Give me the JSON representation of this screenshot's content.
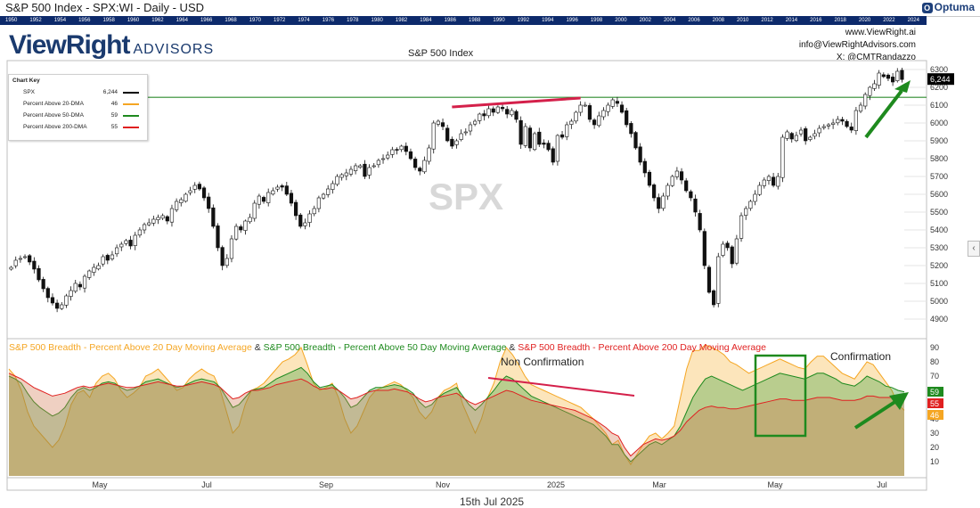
{
  "header": {
    "title": "S&P 500 Index - SPX:WI - Daily - USD",
    "brand": "Optuma",
    "brand_icon": "optuma-icon"
  },
  "year_strip": [
    "1950",
    "1952",
    "1954",
    "1956",
    "1958",
    "1960",
    "1962",
    "1964",
    "1966",
    "1968",
    "1970",
    "1972",
    "1974",
    "1976",
    "1978",
    "1980",
    "1982",
    "1984",
    "1986",
    "1988",
    "1990",
    "1992",
    "1994",
    "1996",
    "1998",
    "2000",
    "2002",
    "2004",
    "2006",
    "2008",
    "2010",
    "2012",
    "2014",
    "2016",
    "2018",
    "2020",
    "2022",
    "2024"
  ],
  "logo": {
    "main": "ViewRight",
    "sub": "ADVISORS"
  },
  "contact": {
    "site": "www.ViewRight.ai",
    "email": "info@ViewRightAdvisors.com",
    "x_handle": "X: @CMTRandazzo"
  },
  "chart_key": {
    "title": "Chart Key",
    "rows": [
      {
        "name": "SPX",
        "value": "6,244",
        "color": "#000000"
      },
      {
        "name": "Percent Above 20-DMA",
        "value": "46",
        "color": "#f5a623"
      },
      {
        "name": "Percent Above 50-DMA",
        "value": "59",
        "color": "#1e8a1e"
      },
      {
        "name": "Percent Above 200-DMA",
        "value": "55",
        "color": "#e02020"
      }
    ]
  },
  "lower_legend": {
    "part1": "S&P 500 Breadth - Percent Above 20 Day Moving Average",
    "amp1": " & ",
    "part2": "S&P 500 Breadth - Percent Above 50 Day Moving Average",
    "amp2": " & ",
    "part3": "S&P 500 Breadth - Percent Above 200 Day Moving Average"
  },
  "footer_date": "15th Jul 2025",
  "chart_data": [
    {
      "type": "candlestick",
      "title": "S&P 500 Index",
      "watermark": "SPX",
      "ylim": [
        4800,
        6340
      ],
      "y_ticks": [
        4900,
        5000,
        5100,
        5200,
        5300,
        5400,
        5500,
        5600,
        5700,
        5800,
        5900,
        6000,
        6100,
        6200,
        6300
      ],
      "last_value_label": "6,244",
      "horizontal_line": {
        "value": 6144,
        "color": "#2e8b2e"
      },
      "x_month_labels": [
        "May",
        "Jul",
        "Sep",
        "Nov",
        "2025",
        "Mar",
        "May",
        "Jul"
      ],
      "closes": [
        5190,
        5230,
        5240,
        5250,
        5220,
        5180,
        5120,
        5070,
        5020,
        4990,
        4960,
        4980,
        5030,
        5060,
        5100,
        5080,
        5140,
        5170,
        5190,
        5200,
        5250,
        5230,
        5260,
        5300,
        5320,
        5340,
        5310,
        5370,
        5400,
        5430,
        5440,
        5460,
        5470,
        5480,
        5450,
        5520,
        5560,
        5570,
        5600,
        5620,
        5650,
        5630,
        5580,
        5520,
        5420,
        5300,
        5200,
        5240,
        5350,
        5420,
        5400,
        5450,
        5470,
        5550,
        5590,
        5560,
        5610,
        5620,
        5640,
        5640,
        5600,
        5550,
        5480,
        5420,
        5440,
        5490,
        5520,
        5580,
        5600,
        5630,
        5660,
        5700,
        5710,
        5720,
        5740,
        5760,
        5760,
        5700,
        5750,
        5760,
        5790,
        5800,
        5820,
        5850,
        5850,
        5870,
        5840,
        5800,
        5750,
        5730,
        5790,
        5860,
        6000,
        6010,
        5980,
        5900,
        5870,
        5900,
        5940,
        5950,
        5990,
        6010,
        6050,
        6040,
        6080,
        6060,
        6090,
        6080,
        6050,
        6070,
        6020,
        5880,
        5980,
        5860,
        5940,
        5880,
        5880,
        5850,
        5780,
        5930,
        5920,
        5990,
        6010,
        6060,
        6100,
        6100,
        6020,
        5990,
        6040,
        6070,
        6100,
        6130,
        6110,
        6060,
        5990,
        5940,
        5860,
        5780,
        5720,
        5650,
        5580,
        5520,
        5590,
        5650,
        5700,
        5730,
        5680,
        5620,
        5580,
        5500,
        5400,
        5200,
        5050,
        4980,
        5250,
        5320,
        5300,
        5210,
        5350,
        5480,
        5520,
        5560,
        5600,
        5650,
        5680,
        5700,
        5650,
        5700,
        5920,
        5950,
        5910,
        5930,
        5960,
        5900,
        5920,
        5940,
        5970,
        5980,
        5990,
        6000,
        6020,
        6010,
        5980,
        5960,
        6070,
        6100,
        6160,
        6200,
        6220,
        6280,
        6260,
        6250,
        6230,
        6290,
        6244
      ]
    },
    {
      "type": "area",
      "title": "S&P 500 Breadth - Percent Above 20 / 50 / 200 Day Moving Average",
      "ylim": [
        0,
        95
      ],
      "y_ticks": [
        10,
        20,
        30,
        40,
        50,
        60,
        70,
        80,
        90
      ],
      "last_values": {
        "pct_above_50": 59,
        "pct_above_200": 55,
        "pct_above_20": 46
      },
      "series": [
        {
          "name": "Percent Above 20 Day Moving Average",
          "color": "#f5a623",
          "values": [
            75,
            70,
            60,
            45,
            35,
            30,
            25,
            20,
            25,
            35,
            50,
            58,
            60,
            55,
            65,
            70,
            72,
            68,
            60,
            55,
            58,
            62,
            70,
            72,
            75,
            70,
            65,
            60,
            62,
            68,
            72,
            75,
            72,
            70,
            60,
            45,
            30,
            35,
            50,
            60,
            62,
            65,
            70,
            75,
            80,
            82,
            85,
            90,
            78,
            65,
            60,
            62,
            65,
            55,
            40,
            30,
            35,
            45,
            55,
            60,
            62,
            64,
            66,
            64,
            60,
            55,
            45,
            40,
            45,
            55,
            60,
            62,
            65,
            50,
            40,
            30,
            40,
            55,
            65,
            80,
            90,
            85,
            78,
            70,
            64,
            62,
            60,
            58,
            56,
            54,
            52,
            50,
            48,
            44,
            40,
            35,
            30,
            22,
            25,
            15,
            8,
            15,
            22,
            28,
            30,
            26,
            30,
            35,
            55,
            75,
            88,
            88,
            92,
            90,
            88,
            85,
            80,
            78,
            75,
            72,
            74,
            76,
            78,
            80,
            82,
            80,
            78,
            76,
            75,
            80,
            84,
            84,
            80,
            76,
            72,
            70,
            68,
            74,
            80,
            78,
            72,
            66,
            60,
            50,
            46
          ]
        },
        {
          "name": "Percent Above 50 Day Moving Average",
          "color": "#1e8a1e",
          "values": [
            70,
            68,
            65,
            58,
            52,
            48,
            45,
            42,
            44,
            48,
            55,
            60,
            62,
            60,
            62,
            65,
            66,
            65,
            62,
            60,
            61,
            63,
            66,
            67,
            68,
            66,
            64,
            62,
            63,
            65,
            67,
            68,
            67,
            66,
            62,
            55,
            48,
            50,
            55,
            60,
            61,
            62,
            65,
            68,
            70,
            72,
            74,
            76,
            72,
            66,
            62,
            63,
            64,
            60,
            55,
            48,
            50,
            55,
            60,
            62,
            62,
            63,
            64,
            63,
            61,
            58,
            52,
            48,
            50,
            55,
            58,
            60,
            62,
            56,
            50,
            46,
            50,
            55,
            60,
            66,
            70,
            68,
            64,
            60,
            56,
            54,
            52,
            50,
            48,
            46,
            44,
            42,
            40,
            38,
            36,
            32,
            28,
            22,
            22,
            15,
            10,
            14,
            18,
            22,
            24,
            22,
            25,
            28,
            35,
            45,
            55,
            62,
            68,
            70,
            68,
            66,
            64,
            62,
            60,
            62,
            64,
            66,
            68,
            70,
            72,
            71,
            70,
            69,
            68,
            70,
            72,
            72,
            70,
            68,
            65,
            64,
            63,
            66,
            70,
            68,
            66,
            63,
            62,
            60,
            59
          ]
        },
        {
          "name": "Percent Above 200 Day Moving Average",
          "color": "#e02020",
          "values": [
            72,
            70,
            68,
            65,
            62,
            60,
            58,
            56,
            57,
            58,
            60,
            62,
            63,
            62,
            63,
            64,
            65,
            64,
            63,
            62,
            62,
            63,
            64,
            65,
            66,
            65,
            64,
            63,
            63,
            64,
            65,
            66,
            65,
            64,
            62,
            58,
            54,
            55,
            58,
            60,
            60,
            61,
            62,
            64,
            65,
            66,
            67,
            68,
            66,
            63,
            61,
            61,
            62,
            60,
            57,
            54,
            55,
            57,
            59,
            60,
            60,
            60,
            61,
            60,
            59,
            57,
            54,
            52,
            53,
            55,
            56,
            57,
            58,
            55,
            52,
            50,
            52,
            54,
            56,
            58,
            60,
            59,
            57,
            55,
            53,
            52,
            51,
            50,
            49,
            48,
            47,
            46,
            44,
            42,
            40,
            37,
            34,
            30,
            28,
            20,
            14,
            18,
            22,
            24,
            26,
            25,
            26,
            28,
            32,
            38,
            42,
            46,
            48,
            49,
            48,
            48,
            47,
            47,
            48,
            49,
            50,
            51,
            52,
            53,
            54,
            54,
            53,
            53,
            53,
            54,
            55,
            55,
            55,
            54,
            53,
            53,
            53,
            54,
            56,
            56,
            55,
            55,
            55,
            55,
            55
          ]
        }
      ],
      "x_month_labels": [
        "May",
        "Jul",
        "Sep",
        "Nov",
        "2025",
        "Mar",
        "May",
        "Jul"
      ]
    }
  ],
  "annotations": {
    "non_confirmation": "Non Confirmation",
    "confirmation": "Confirmation"
  }
}
